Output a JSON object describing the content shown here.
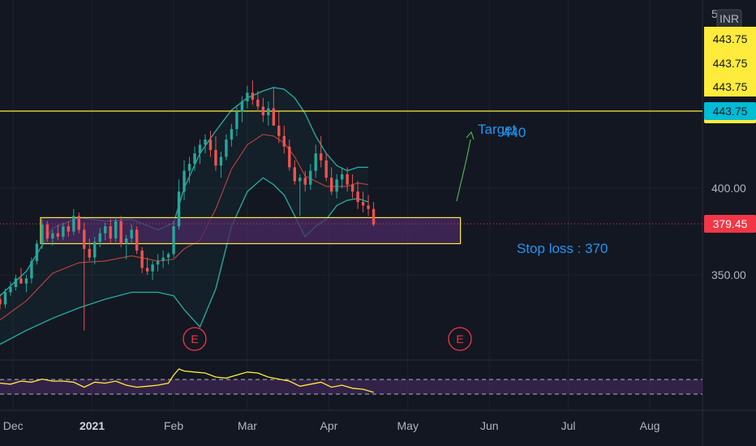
{
  "chart_data": {
    "type": "candlestick",
    "currency": "INR",
    "price_axis": {
      "ticks": [
        350,
        400
      ],
      "tick_labels": [
        "350.00",
        "400.00"
      ],
      "top_partial_label": "5",
      "range": [
        310,
        460
      ]
    },
    "time_axis": {
      "labels": [
        "Dec",
        "2021",
        "Feb",
        "Mar",
        "Apr",
        "May",
        "Jun",
        "Jul",
        "Aug"
      ],
      "bold_label": "2021",
      "range_days": [
        0,
        267
      ],
      "label_days": [
        5,
        35,
        66,
        94,
        125,
        155,
        186,
        216,
        247
      ]
    },
    "price_tags": [
      {
        "label": "443.75",
        "bg": "#ffeb3b",
        "fg": "#131722"
      },
      {
        "label": "443.75",
        "bg": "#ffeb3b",
        "fg": "#131722"
      },
      {
        "label": "443.75",
        "bg": "#ffeb3b",
        "fg": "#131722"
      },
      {
        "label": "443.75",
        "bg": "#ffeb3b",
        "fg": "#131722"
      },
      {
        "label": "443.75",
        "bg": "#00bcd4",
        "fg": "#131722"
      },
      {
        "label": "379.45",
        "bg": "#f23645",
        "fg": "#ffffff"
      }
    ],
    "last_price": 379.45,
    "horizontal_line": {
      "price": 443.75,
      "color": "#ffeb3b"
    },
    "support_zone": {
      "top": 383,
      "bottom": 368,
      "x_start_day": 0,
      "x_end_day": 175,
      "fill": "#4a2a63",
      "stroke": "#ffeb3b"
    },
    "annotations": [
      {
        "text": "Target",
        "value": "440",
        "color": "#2196f3"
      },
      {
        "text": "Stop loss : 370",
        "color": "#2196f3"
      }
    ],
    "earnings_markers": [
      {
        "label": "E",
        "day": 68,
        "color": "#f23645"
      },
      {
        "label": "E",
        "day": 160,
        "color": "#f23645"
      }
    ],
    "colors": {
      "up": "#26a69a",
      "down": "#ef5350",
      "bb_band": "#26a69a",
      "bb_mid": "#b2403a",
      "osc": "#ffeb3b",
      "osc_band": "#4a2a63",
      "background": "#131722",
      "grid": "#1e2230"
    },
    "candles_ohlc": [
      [
        0,
        336,
        339,
        330,
        333
      ],
      [
        2,
        333,
        342,
        331,
        340
      ],
      [
        4,
        340,
        346,
        338,
        343
      ],
      [
        6,
        343,
        350,
        341,
        348
      ],
      [
        8,
        348,
        354,
        345,
        345
      ],
      [
        10,
        345,
        350,
        340,
        348
      ],
      [
        12,
        348,
        360,
        345,
        358
      ],
      [
        14,
        358,
        370,
        356,
        368
      ],
      [
        16,
        368,
        382,
        365,
        379
      ],
      [
        18,
        379,
        381,
        369,
        371
      ],
      [
        20,
        371,
        376,
        367,
        374
      ],
      [
        22,
        374,
        379,
        370,
        372
      ],
      [
        24,
        372,
        380,
        370,
        378
      ],
      [
        26,
        378,
        381,
        372,
        375
      ],
      [
        28,
        375,
        388,
        373,
        384
      ],
      [
        30,
        384,
        386,
        374,
        376
      ],
      [
        32,
        376,
        380,
        318,
        365
      ],
      [
        34,
        365,
        371,
        358,
        360
      ],
      [
        36,
        360,
        372,
        356,
        369
      ],
      [
        38,
        369,
        377,
        366,
        374
      ],
      [
        40,
        374,
        380,
        370,
        378
      ],
      [
        42,
        378,
        382,
        368,
        371
      ],
      [
        44,
        371,
        383,
        369,
        381
      ],
      [
        46,
        381,
        384,
        366,
        368
      ],
      [
        48,
        368,
        373,
        359,
        371
      ],
      [
        50,
        371,
        379,
        368,
        376
      ],
      [
        52,
        376,
        378,
        362,
        364
      ],
      [
        54,
        364,
        366,
        351,
        354
      ],
      [
        56,
        354,
        360,
        350,
        352
      ],
      [
        58,
        352,
        358,
        347,
        356
      ],
      [
        60,
        356,
        362,
        352,
        358
      ],
      [
        62,
        358,
        364,
        354,
        360
      ],
      [
        64,
        360,
        363,
        356,
        362
      ],
      [
        66,
        362,
        381,
        360,
        378
      ],
      [
        68,
        378,
        405,
        376,
        398
      ],
      [
        70,
        398,
        416,
        393,
        410
      ],
      [
        72,
        410,
        418,
        403,
        414
      ],
      [
        74,
        414,
        424,
        410,
        420
      ],
      [
        76,
        420,
        428,
        414,
        425
      ],
      [
        78,
        425,
        431,
        420,
        428
      ],
      [
        80,
        428,
        433,
        418,
        422
      ],
      [
        82,
        422,
        430,
        410,
        413
      ],
      [
        84,
        413,
        421,
        406,
        418
      ],
      [
        86,
        418,
        431,
        416,
        428
      ],
      [
        88,
        428,
        437,
        424,
        434
      ],
      [
        90,
        434,
        447,
        430,
        444
      ],
      [
        92,
        444,
        453,
        438,
        450
      ],
      [
        94,
        450,
        459,
        446,
        455
      ],
      [
        96,
        455,
        462,
        448,
        451
      ],
      [
        98,
        451,
        456,
        444,
        447
      ],
      [
        100,
        447,
        452,
        438,
        442
      ],
      [
        102,
        442,
        450,
        436,
        446
      ],
      [
        104,
        446,
        458,
        440,
        436
      ],
      [
        106,
        436,
        444,
        426,
        430
      ],
      [
        108,
        430,
        436,
        420,
        424
      ],
      [
        110,
        424,
        428,
        410,
        412
      ],
      [
        112,
        412,
        416,
        402,
        404
      ],
      [
        114,
        404,
        408,
        384,
        406
      ],
      [
        116,
        406,
        410,
        398,
        402
      ],
      [
        118,
        402,
        414,
        399,
        410
      ],
      [
        120,
        410,
        425,
        406,
        420
      ],
      [
        122,
        420,
        430,
        412,
        416
      ],
      [
        124,
        416,
        420,
        404,
        406
      ],
      [
        126,
        406,
        412,
        396,
        398
      ],
      [
        128,
        398,
        408,
        394,
        405
      ],
      [
        130,
        405,
        412,
        400,
        408
      ],
      [
        132,
        408,
        412,
        398,
        402
      ],
      [
        134,
        402,
        408,
        394,
        398
      ],
      [
        136,
        398,
        404,
        388,
        392
      ],
      [
        138,
        392,
        398,
        386,
        390
      ],
      [
        140,
        390,
        396,
        384,
        388
      ],
      [
        142,
        388,
        392,
        378,
        379
      ]
    ],
    "bb_upper": [
      [
        0,
        338
      ],
      [
        10,
        352
      ],
      [
        20,
        377
      ],
      [
        30,
        383
      ],
      [
        40,
        381
      ],
      [
        50,
        382
      ],
      [
        60,
        376
      ],
      [
        66,
        380
      ],
      [
        70,
        400
      ],
      [
        76,
        420
      ],
      [
        82,
        433
      ],
      [
        88,
        445
      ],
      [
        94,
        452
      ],
      [
        100,
        456
      ],
      [
        104,
        458
      ],
      [
        108,
        457
      ],
      [
        112,
        452
      ],
      [
        116,
        443
      ],
      [
        120,
        430
      ],
      [
        124,
        420
      ],
      [
        128,
        413
      ],
      [
        132,
        410
      ],
      [
        136,
        412
      ],
      [
        140,
        412
      ]
    ],
    "bb_lower": [
      [
        0,
        310
      ],
      [
        10,
        318
      ],
      [
        20,
        325
      ],
      [
        30,
        331
      ],
      [
        40,
        336
      ],
      [
        50,
        340
      ],
      [
        60,
        340
      ],
      [
        66,
        338
      ],
      [
        70,
        330
      ],
      [
        76,
        320
      ],
      [
        82,
        342
      ],
      [
        88,
        378
      ],
      [
        94,
        398
      ],
      [
        100,
        406
      ],
      [
        104,
        402
      ],
      [
        108,
        396
      ],
      [
        112,
        384
      ],
      [
        116,
        372
      ],
      [
        120,
        378
      ],
      [
        124,
        382
      ],
      [
        128,
        390
      ],
      [
        132,
        393
      ],
      [
        136,
        394
      ],
      [
        140,
        392
      ]
    ],
    "bb_middle": [
      [
        0,
        324
      ],
      [
        10,
        335
      ],
      [
        20,
        351
      ],
      [
        30,
        357
      ],
      [
        40,
        358
      ],
      [
        50,
        361
      ],
      [
        60,
        358
      ],
      [
        66,
        359
      ],
      [
        70,
        365
      ],
      [
        76,
        370
      ],
      [
        82,
        388
      ],
      [
        88,
        411
      ],
      [
        94,
        425
      ],
      [
        100,
        431
      ],
      [
        104,
        430
      ],
      [
        108,
        426
      ],
      [
        112,
        418
      ],
      [
        116,
        407
      ],
      [
        120,
        404
      ],
      [
        124,
        401
      ],
      [
        128,
        401
      ],
      [
        132,
        401
      ],
      [
        136,
        403
      ],
      [
        140,
        402
      ]
    ],
    "oscillator": [
      [
        0,
        52
      ],
      [
        4,
        51
      ],
      [
        8,
        54
      ],
      [
        12,
        53
      ],
      [
        16,
        56
      ],
      [
        20,
        54
      ],
      [
        24,
        54
      ],
      [
        28,
        53
      ],
      [
        32,
        48
      ],
      [
        36,
        53
      ],
      [
        40,
        52
      ],
      [
        44,
        54
      ],
      [
        48,
        50
      ],
      [
        52,
        48
      ],
      [
        56,
        49
      ],
      [
        60,
        50
      ],
      [
        64,
        52
      ],
      [
        66,
        60
      ],
      [
        68,
        66
      ],
      [
        70,
        64
      ],
      [
        74,
        63
      ],
      [
        78,
        62
      ],
      [
        82,
        58
      ],
      [
        86,
        57
      ],
      [
        90,
        60
      ],
      [
        94,
        63
      ],
      [
        98,
        62
      ],
      [
        102,
        58
      ],
      [
        106,
        56
      ],
      [
        110,
        54
      ],
      [
        114,
        49
      ],
      [
        118,
        51
      ],
      [
        122,
        53
      ],
      [
        126,
        48
      ],
      [
        130,
        50
      ],
      [
        134,
        47
      ],
      [
        138,
        46
      ],
      [
        142,
        43
      ]
    ]
  }
}
